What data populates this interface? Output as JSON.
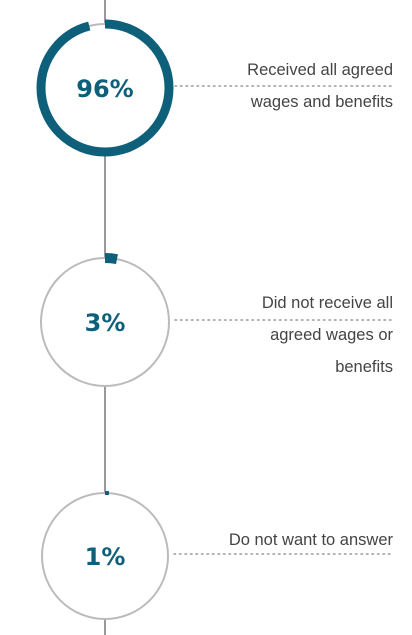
{
  "chart_data": {
    "type": "pie",
    "title": "",
    "xlabel": "",
    "ylabel": "",
    "categories": [
      "Received all agreed wages and benefits",
      "Did not receive all agreed wages or benefits",
      "Do not want to answer"
    ],
    "values": [
      96,
      3,
      1
    ],
    "value_labels": [
      "96%",
      "3%",
      "1%"
    ],
    "label_lines": [
      [
        "Received all agreed",
        "wages and benefits"
      ],
      [
        "Did not receive all",
        "agreed wages or",
        "benefits"
      ],
      [
        "Do not want to answer"
      ]
    ],
    "grid": false,
    "legend": "none"
  },
  "colors": {
    "accent": "#0d5f7a",
    "ring_track": "#bbbbbb",
    "connector": "#999999",
    "leader_dots": "#999999",
    "label_text": "#444444"
  }
}
